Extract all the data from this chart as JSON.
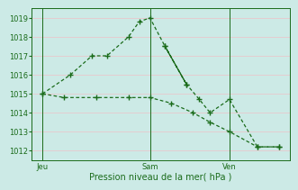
{
  "color": "#1a6b1a",
  "bg_color": "#cceae6",
  "grid_color": "#e8c8cc",
  "xlabel": "Pression niveau de la mer( hPa )",
  "ylim": [
    1011.5,
    1019.5
  ],
  "yticks": [
    1012,
    1013,
    1014,
    1015,
    1016,
    1017,
    1018,
    1019
  ],
  "xtick_labels": [
    "Jeu",
    "Sam",
    "Ven"
  ],
  "xlim": [
    0,
    12
  ],
  "jeu_x": 0.5,
  "sam_x": 5.5,
  "ven_x": 9.2,
  "upper_x": [
    0.5,
    1.8,
    2.8,
    3.5,
    4.5,
    5.0,
    5.5,
    6.2,
    7.2
  ],
  "upper_y": [
    1015.0,
    1016.0,
    1017.0,
    1017.0,
    1018.0,
    1018.8,
    1019.0,
    1017.5,
    1015.5
  ],
  "upper_cont_x": [
    5.5,
    6.2,
    7.2,
    7.8,
    8.3,
    9.2,
    10.5,
    11.5
  ],
  "upper_cont_y": [
    1019.0,
    1017.5,
    1015.5,
    1014.7,
    1014.0,
    1014.7,
    1012.2,
    1012.2
  ],
  "lower_x": [
    0.5,
    1.5,
    3.0,
    4.5,
    5.5,
    6.5,
    7.5,
    8.3,
    9.2,
    10.5,
    11.5
  ],
  "lower_y": [
    1015.0,
    1014.8,
    1014.8,
    1014.8,
    1014.8,
    1014.5,
    1014.0,
    1013.5,
    1013.0,
    1012.2,
    1012.2
  ]
}
